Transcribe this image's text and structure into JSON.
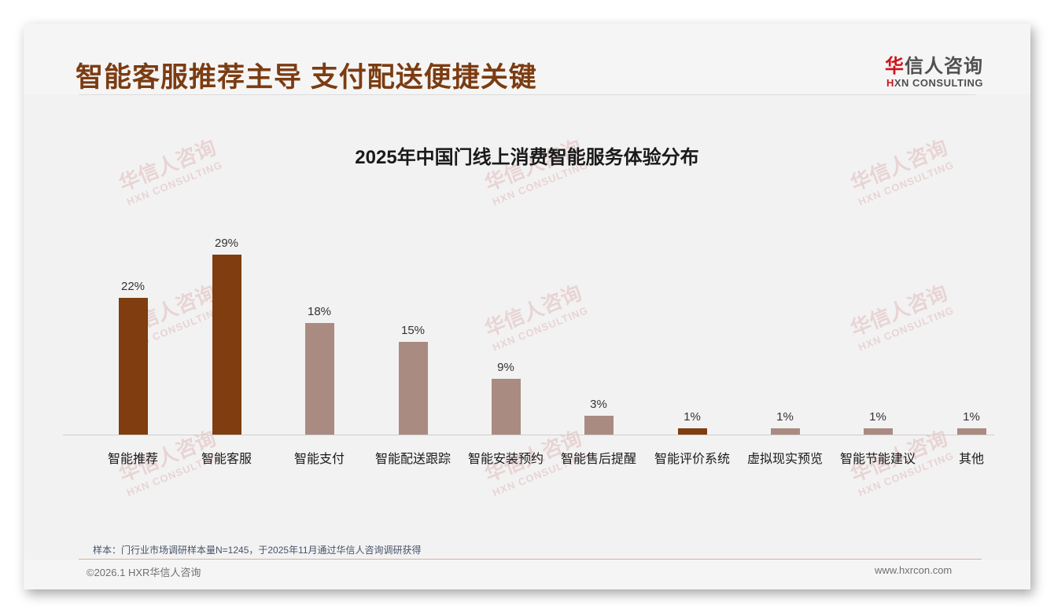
{
  "header": {
    "title": "智能客服推荐主导 支付配送便捷关键",
    "logo": {
      "cn_first": "华",
      "cn_rest": "信人咨询",
      "en_first": "H",
      "en_rest": "XN CONSULTING"
    }
  },
  "watermark": {
    "cn": "华信人咨询",
    "en": "HXN CONSULTING"
  },
  "colors": {
    "title": "#7b3c12",
    "highlight_bar": "#7f3d10",
    "normal_bar": "#a98b82",
    "accent_red": "#d0121a"
  },
  "chart_data": {
    "type": "bar",
    "title": "2025年中国门线上消费智能服务体验分布",
    "categories": [
      "智能推荐",
      "智能客服",
      "智能支付",
      "智能配送跟踪",
      "智能安装预约",
      "智能售后提醒",
      "智能评价系统",
      "虚拟现实预览",
      "智能节能建议",
      "其他"
    ],
    "values": [
      22,
      29,
      18,
      15,
      9,
      3,
      1,
      1,
      1,
      1
    ],
    "value_labels": [
      "22%",
      "29%",
      "18%",
      "15%",
      "9%",
      "3%",
      "1%",
      "1%",
      "1%",
      "1%"
    ],
    "highlighted": [
      true,
      true,
      false,
      false,
      false,
      false,
      true,
      false,
      false,
      false
    ],
    "xlabel": "",
    "ylabel": "",
    "unit": "%",
    "ylim": [
      0,
      30
    ],
    "grid": false,
    "legend": null
  },
  "footer": {
    "source_note": "样本：门行业市场调研样本量N=1245，于2025年11月通过华信人咨询调研获得",
    "copyright": "©2026.1 HXR华信人咨询",
    "website": "www.hxrcon.com"
  }
}
